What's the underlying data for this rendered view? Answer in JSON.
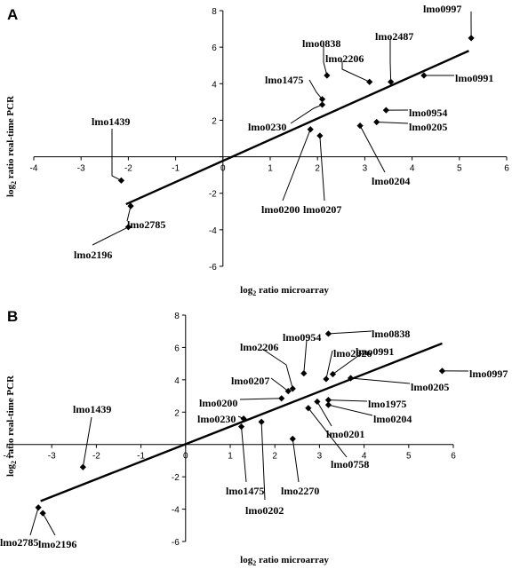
{
  "chart_data": [
    {
      "type": "scatter",
      "panel": "A",
      "xlabel_prefix": "log",
      "xlabel_sub": "2",
      "xlabel_rest": " ratio microarray",
      "ylabel_prefix": "log",
      "ylabel_sub": "2",
      "ylabel_rest": " ratio real-time PCR",
      "xlim": [
        -4,
        6
      ],
      "ylim": [
        -6,
        8
      ],
      "xticks": [
        -4,
        -3,
        -2,
        -1,
        0,
        1,
        2,
        3,
        4,
        5,
        6
      ],
      "yticks": [
        -6,
        -4,
        -2,
        0,
        2,
        4,
        6,
        8
      ],
      "grid": false,
      "trendline": {
        "x": [
          -2.05,
          5.2
        ],
        "y": [
          -2.6,
          5.8
        ]
      },
      "points": [
        {
          "name": "lmo0997",
          "x": 5.25,
          "y": 6.5
        },
        {
          "name": "lmo0838",
          "x": 2.2,
          "y": 4.45
        },
        {
          "name": "lmo2487",
          "x": 3.55,
          "y": 4.1
        },
        {
          "name": "lmo2206",
          "x": 3.1,
          "y": 4.1
        },
        {
          "name": "lmo0991",
          "x": 4.25,
          "y": 4.45
        },
        {
          "name": "lmo1475",
          "x": 2.1,
          "y": 3.15
        },
        {
          "name": "lmo0230",
          "x": 2.1,
          "y": 2.85
        },
        {
          "name": "lmo0954",
          "x": 3.45,
          "y": 2.55
        },
        {
          "name": "lmo0205",
          "x": 3.25,
          "y": 1.9
        },
        {
          "name": "lmo0204",
          "x": 2.9,
          "y": 1.7
        },
        {
          "name": "lmo0200",
          "x": 1.85,
          "y": 1.5
        },
        {
          "name": "lmo0207",
          "x": 2.05,
          "y": 1.15
        },
        {
          "name": "lmo1439",
          "x": -2.15,
          "y": -1.3
        },
        {
          "name": "lmo2785",
          "x": -1.95,
          "y": -2.7
        },
        {
          "name": "lmo2196",
          "x": -2.0,
          "y": -3.85
        }
      ]
    },
    {
      "type": "scatter",
      "panel": "B",
      "xlabel_prefix": "log",
      "xlabel_sub": "2",
      "xlabel_rest": " ratio microarray",
      "ylabel_prefix": "log",
      "ylabel_sub": "2",
      "ylabel_rest": " ratio real-time PCR",
      "xlim": [
        -4,
        6
      ],
      "ylim": [
        -6,
        8
      ],
      "xticks": [
        -4,
        -3,
        -2,
        -1,
        0,
        1,
        2,
        3,
        4,
        5,
        6
      ],
      "yticks": [
        -6,
        -4,
        -2,
        0,
        2,
        4,
        6,
        8
      ],
      "grid": false,
      "trendline": {
        "x": [
          -3.25,
          5.75
        ],
        "y": [
          -3.5,
          6.25
        ]
      },
      "points": [
        {
          "name": "lmo0838",
          "x": 3.2,
          "y": 6.85
        },
        {
          "name": "lmo0954",
          "x": 2.65,
          "y": 4.4
        },
        {
          "name": "lmo2826",
          "x": 3.15,
          "y": 4.05
        },
        {
          "name": "lmo0991",
          "x": 3.3,
          "y": 4.35
        },
        {
          "name": "lmo0997",
          "x": 5.75,
          "y": 4.55
        },
        {
          "name": "lmo0205",
          "x": 3.7,
          "y": 4.1
        },
        {
          "name": "lmo2206",
          "x": 2.4,
          "y": 3.45
        },
        {
          "name": "lmo0207",
          "x": 2.3,
          "y": 3.3
        },
        {
          "name": "lmo0200",
          "x": 2.15,
          "y": 2.85
        },
        {
          "name": "lmo1975",
          "x": 3.2,
          "y": 2.75
        },
        {
          "name": "lmo0204",
          "x": 3.2,
          "y": 2.45
        },
        {
          "name": "lmo0201",
          "x": 2.95,
          "y": 2.65
        },
        {
          "name": "lmo0758",
          "x": 2.75,
          "y": 2.25
        },
        {
          "name": "lmo0230",
          "x": 1.3,
          "y": 1.6
        },
        {
          "name": "lmo1475",
          "x": 1.25,
          "y": 1.1
        },
        {
          "name": "lmo0202",
          "x": 1.7,
          "y": 1.4
        },
        {
          "name": "lmo2270",
          "x": 2.4,
          "y": 0.35
        },
        {
          "name": "lmo1439",
          "x": -2.3,
          "y": -1.4
        },
        {
          "name": "lmo2785",
          "x": -3.3,
          "y": -3.9
        },
        {
          "name": "lmo2196",
          "x": -3.2,
          "y": -4.25
        }
      ]
    }
  ]
}
